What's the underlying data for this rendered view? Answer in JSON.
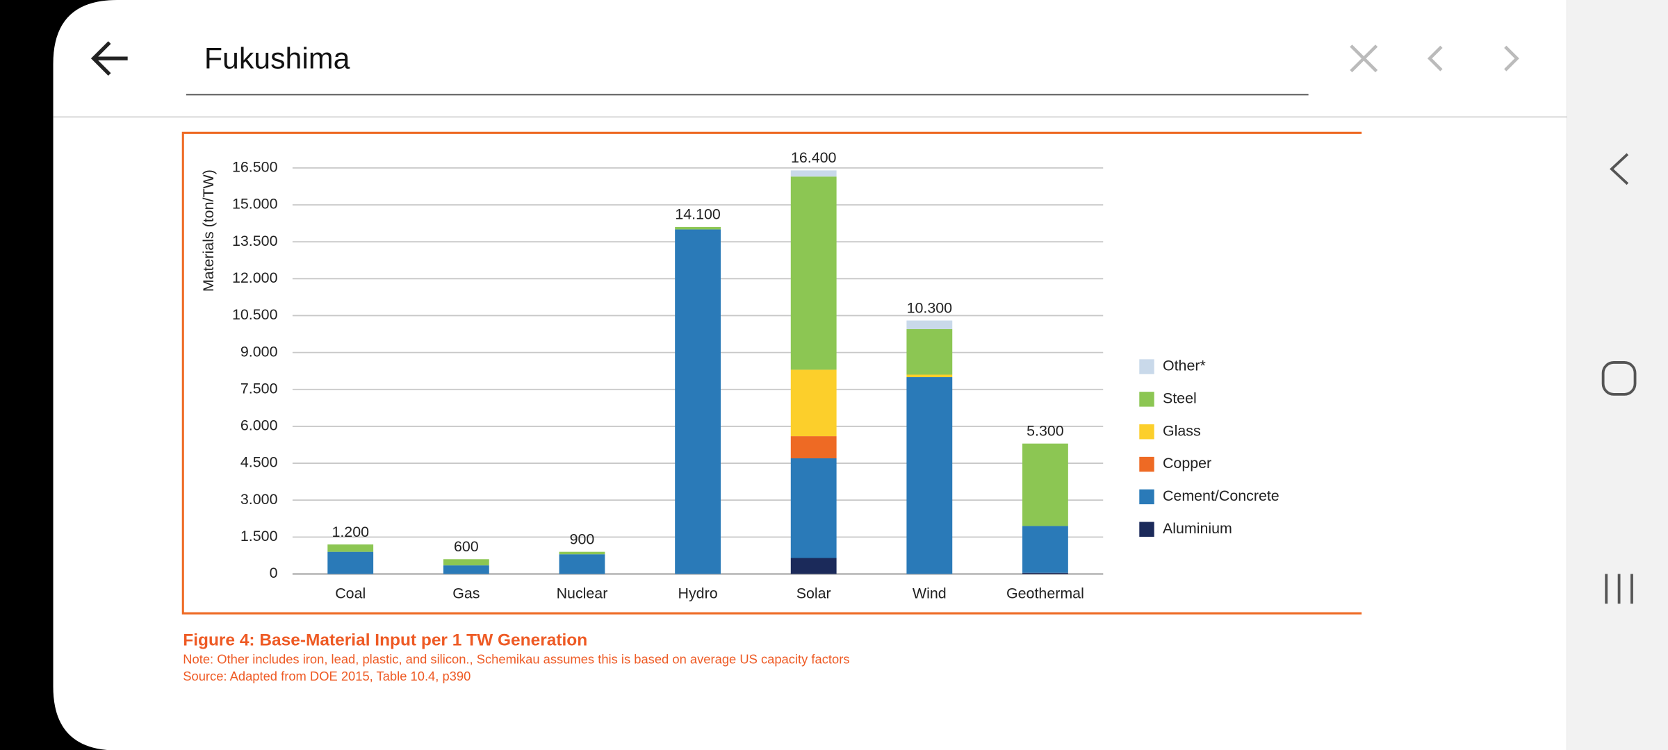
{
  "search_bar": {
    "query": "Fukushima"
  },
  "chart_data": {
    "type": "stacked-bar",
    "y_label": "Materials (ton/TW)",
    "categories": [
      "Coal",
      "Gas",
      "Nuclear",
      "Hydro",
      "Solar",
      "Wind",
      "Geothermal"
    ],
    "series": [
      {
        "name": "Aluminium",
        "color": "#1b2a5a",
        "values": [
          0,
          0,
          0,
          0,
          650,
          0,
          50
        ]
      },
      {
        "name": "Cement/Concrete",
        "color": "#2a7ab8",
        "values": [
          900,
          350,
          800,
          14000,
          4050,
          8000,
          1900
        ]
      },
      {
        "name": "Copper",
        "color": "#ee6a24",
        "values": [
          0,
          0,
          0,
          0,
          900,
          0,
          0
        ]
      },
      {
        "name": "Glass",
        "color": "#fccf2b",
        "values": [
          0,
          0,
          0,
          0,
          2700,
          100,
          0
        ]
      },
      {
        "name": "Steel",
        "color": "#8cc653",
        "values": [
          300,
          250,
          100,
          100,
          7850,
          1850,
          3350
        ]
      },
      {
        "name": "Other*",
        "color": "#c9d9ea",
        "values": [
          0,
          0,
          0,
          0,
          250,
          350,
          0
        ]
      }
    ],
    "totals": {
      "values": [
        1200,
        600,
        900,
        14100,
        16400,
        10300,
        5300
      ],
      "value_labels": [
        "1.200",
        "600",
        "900",
        "14.100",
        "16.400",
        "10.300",
        "5.300"
      ]
    },
    "ylim": [
      0,
      16500
    ],
    "yticks": [
      0,
      {
        "value": 1500,
        "label": "1.500"
      },
      {
        "value": 3000,
        "label": "3.000"
      },
      {
        "value": 4500,
        "label": "4.500"
      },
      {
        "value": 6000,
        "label": "6.000"
      },
      {
        "value": 7500,
        "label": "7.500"
      },
      {
        "value": 9000,
        "label": "9.000"
      },
      {
        "value": 10500,
        "label": "10.500"
      },
      {
        "value": 12000,
        "label": "12.000"
      },
      {
        "value": 13500,
        "label": "13.500"
      },
      {
        "value": 15000,
        "label": "15.000"
      },
      {
        "value": 16500,
        "label": "16.500"
      }
    ],
    "grid": true,
    "legend": "right"
  },
  "figure": {
    "caption": "Figure 4: Base-Material Input per 1 TW Generation",
    "note": "Note: Other includes iron, lead, plastic, and silicon., Schemikau assumes this is based on average US capacity factors",
    "source": "Source: Adapted from DOE 2015, Table 10.4, p390"
  }
}
